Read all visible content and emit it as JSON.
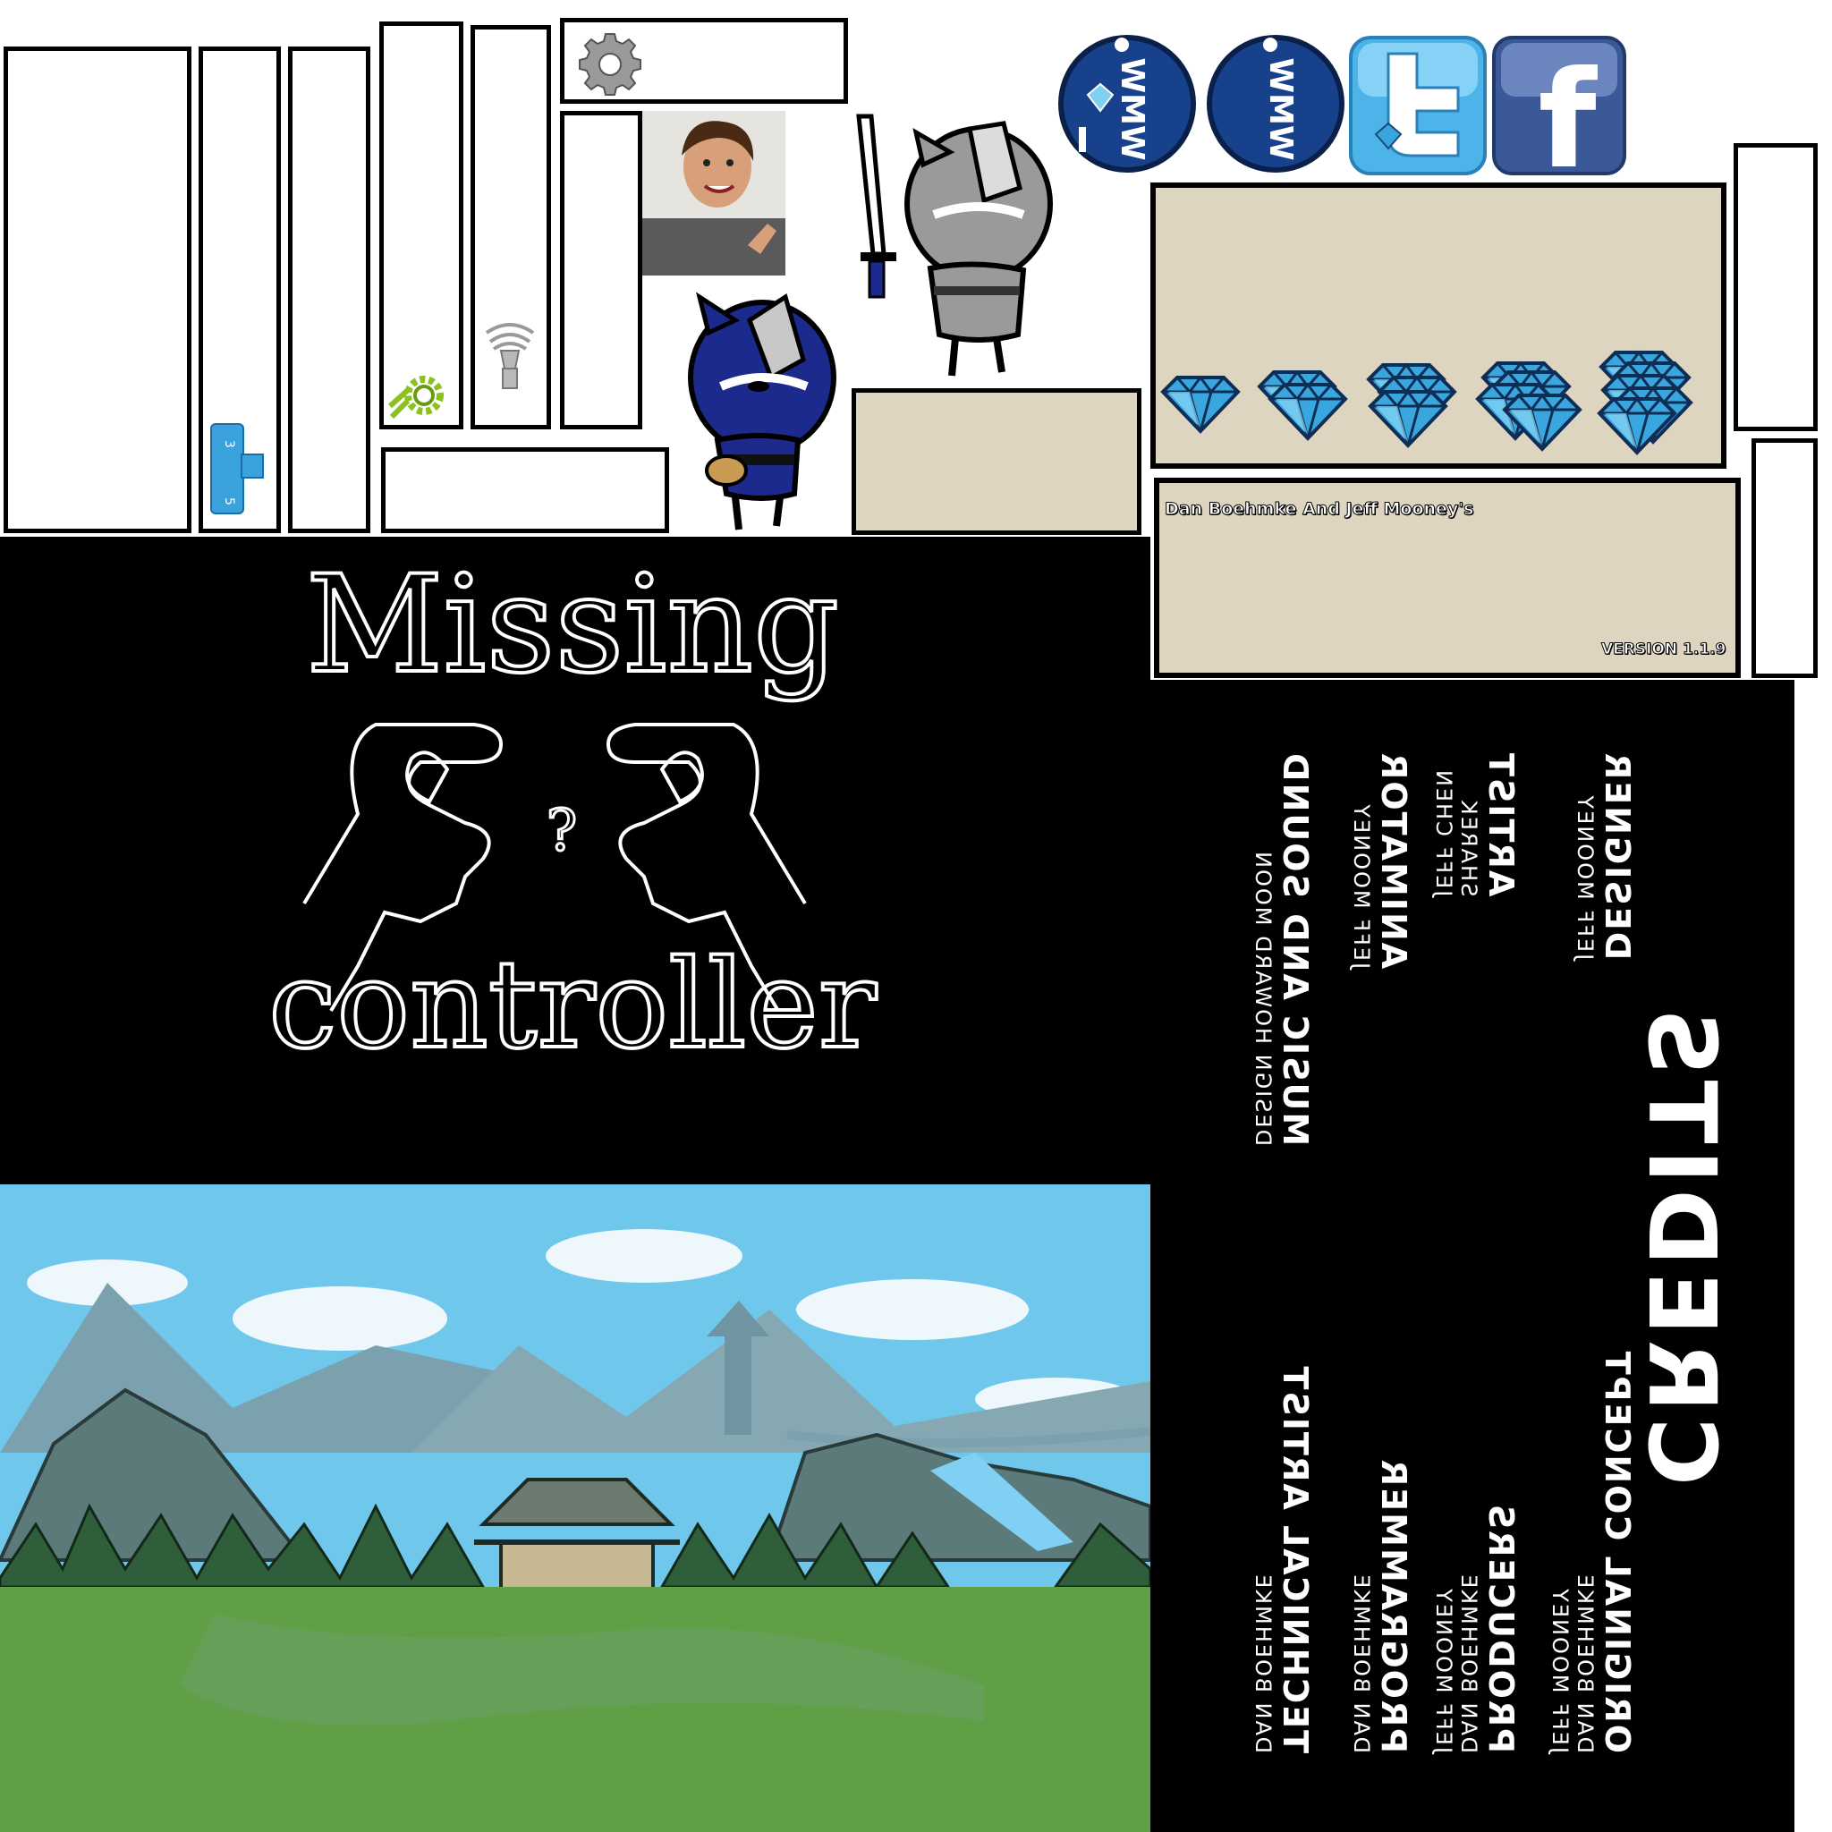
{
  "textures": {
    "title_line1": "Missing",
    "title_line2": "controller",
    "hands_symbol": "?",
    "authors_banner": "Dan Boehmke And Jeff Mooney's",
    "version_label": "VERSION 1.1.9",
    "social_tag_label": "WMW",
    "facebook_glyph": "f"
  },
  "credits": {
    "title": "CREDITS",
    "columns": [
      {
        "sections": [
          {
            "heading": "DESIGNER",
            "names": [
              "JEFF MOONEY"
            ]
          },
          {
            "heading": "ORIGINAL CONCEPT",
            "names": [
              "DAN BOEHMKE",
              "JEFF MOONEY"
            ]
          }
        ]
      },
      {
        "sections": [
          {
            "heading": "ARTIST",
            "names": [
              "SHAREK",
              "JEFF CHEN"
            ]
          },
          {
            "heading": "PRODUCERS",
            "names": [
              "DAN BOEHMKE",
              "JEFF MOONEY"
            ]
          }
        ]
      },
      {
        "sections": [
          {
            "heading": "ANIMATOR",
            "names": [
              "JEFF MOONEY"
            ]
          },
          {
            "heading": "PROGRAMMER",
            "names": [
              "DAN BOEHMKE"
            ]
          }
        ]
      },
      {
        "sections": [
          {
            "heading": "MUSIC AND SOUND",
            "names": [
              "DESIGN HOWARD MOON"
            ]
          },
          {
            "heading": "TECHNICAL ARTIST",
            "names": [
              "DAN BOEHMKE"
            ]
          }
        ]
      }
    ]
  },
  "icons": [
    "gear-icon",
    "settings-gear-icon",
    "speaker-icon",
    "diamond-icon",
    "twitter-icon",
    "facebook-icon",
    "ninja-sprite"
  ],
  "colors": {
    "beige": "#ddd5c0",
    "sky": "#6fc8ec",
    "grass": "#5fa046",
    "navy": "#17418a",
    "twitter": "#4cb4e8",
    "facebook": "#3b5998",
    "diamond": "#39a6dd",
    "blue_ninja": "#1b2a8c",
    "grey_ninja": "#9a9a9a"
  }
}
